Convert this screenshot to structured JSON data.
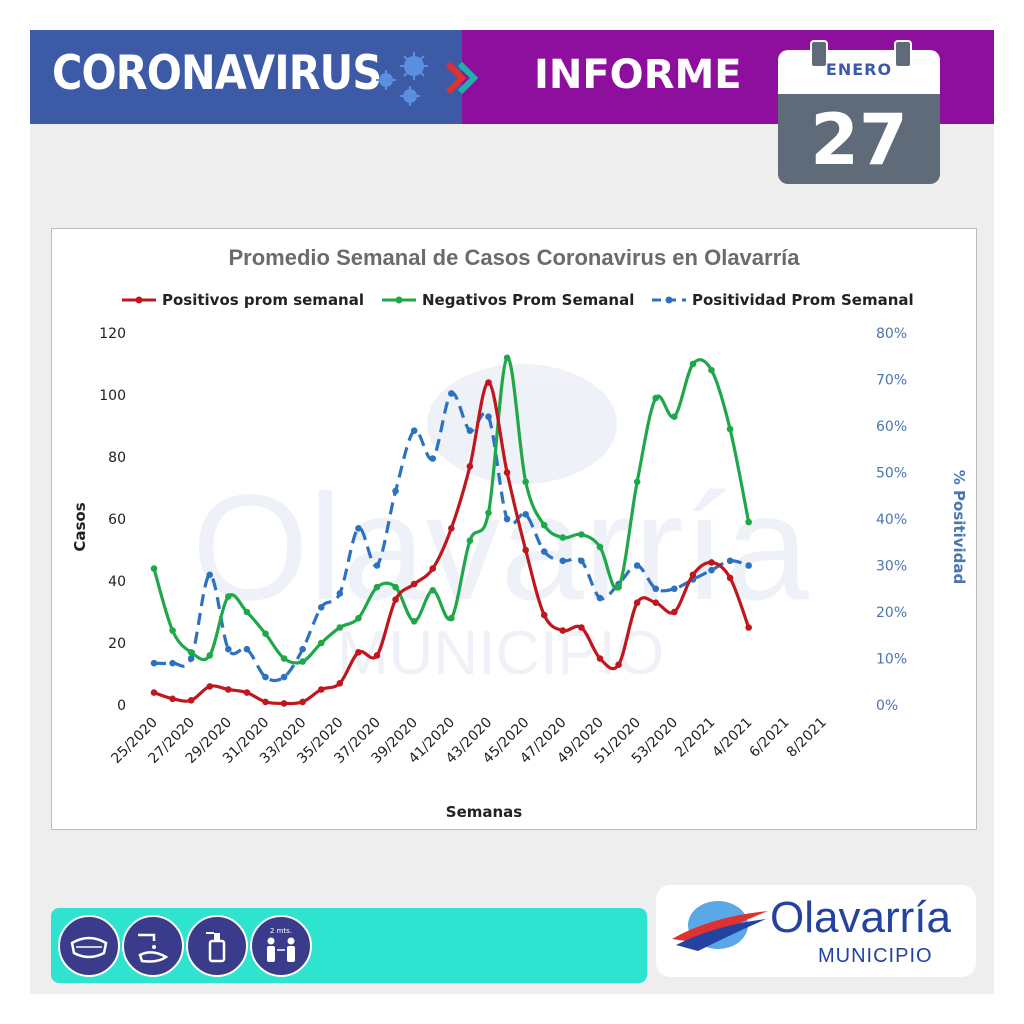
{
  "header": {
    "title": "CORONAVIRUS",
    "report_label": "INFORME",
    "calendar_month": "ENERO",
    "calendar_day": "27",
    "colors": {
      "left_band": "#3c5aa6",
      "right_band": "#8e0f9e"
    }
  },
  "chart_data": {
    "type": "line",
    "title": "Promedio Semanal de Casos Coronavirus en Olavarría",
    "xlabel": "Semanas",
    "ylabel": "Casos",
    "y2label": "% Positividad",
    "ylim": [
      0,
      120
    ],
    "y2lim": [
      0,
      80
    ],
    "y_ticks": [
      "0",
      "20",
      "40",
      "60",
      "80",
      "100",
      "120"
    ],
    "y2_ticks": [
      "0%",
      "10%",
      "20%",
      "30%",
      "40%",
      "50%",
      "60%",
      "70%",
      "80%"
    ],
    "x_ticks": [
      "25/2020",
      "27/2020",
      "29/2020",
      "31/2020",
      "33/2020",
      "35/2020",
      "37/2020",
      "39/2020",
      "41/2020",
      "43/2020",
      "45/2020",
      "47/2020",
      "49/2020",
      "51/2020",
      "53/2020",
      "2/2021",
      "4/2021",
      "6/2021",
      "8/2021"
    ],
    "legend_position": "top",
    "grid": false,
    "series": [
      {
        "name": "Positivos prom semanal",
        "axis": "left",
        "color": "#c0161e",
        "style": "solid",
        "values": [
          4,
          2,
          1.5,
          6,
          5,
          4,
          1,
          0.5,
          1,
          5,
          7,
          17,
          16,
          34,
          39,
          44,
          57,
          77,
          104,
          75,
          50,
          29,
          24,
          25,
          15,
          13,
          33,
          33,
          30,
          42,
          46,
          41,
          25
        ]
      },
      {
        "name": "Negativos Prom Semanal",
        "axis": "left",
        "color": "#1fa84a",
        "style": "solid",
        "values": [
          44,
          24,
          17,
          16,
          35,
          30,
          23,
          15,
          14,
          20,
          25,
          28,
          38,
          38,
          27,
          37,
          28,
          53,
          62,
          112,
          72,
          58,
          54,
          55,
          51,
          38,
          72,
          99,
          93,
          110,
          108,
          89,
          59
        ]
      },
      {
        "name": "Positividad Prom Semanal",
        "axis": "right",
        "color": "#2d72c0",
        "style": "dashed",
        "values": [
          9,
          9,
          10,
          28,
          12,
          12,
          6,
          6,
          12,
          21,
          24,
          38,
          30,
          46,
          59,
          53,
          67,
          59,
          62,
          40,
          41,
          33,
          31,
          31,
          23,
          26,
          30,
          25,
          25,
          27,
          29,
          31,
          30
        ]
      }
    ]
  },
  "footer": {
    "icons": [
      "face-mask-icon",
      "hand-wash-icon",
      "sanitizer-icon",
      "distance-icon"
    ],
    "distance_label": "2 mts.",
    "logo_name": "Olavarría",
    "logo_sub": "MUNICIPIO"
  }
}
